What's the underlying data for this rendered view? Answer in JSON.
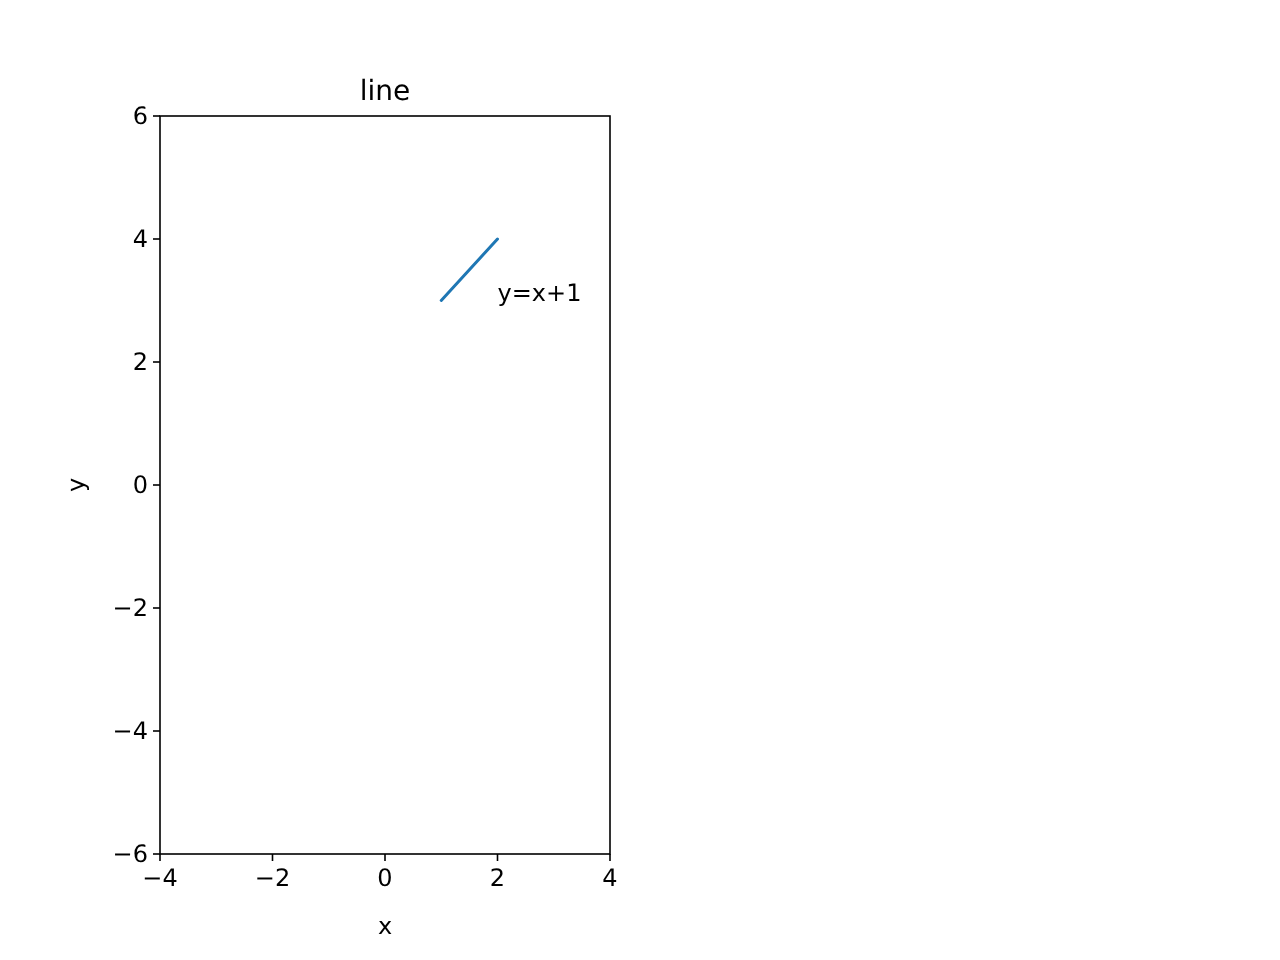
{
  "chart_data": {
    "type": "line",
    "title": "line",
    "xlabel": "x",
    "ylabel": "y",
    "x": [
      1,
      2
    ],
    "series": [
      {
        "color": "#1f77b4",
        "values": [
          3,
          4
        ]
      }
    ],
    "xlim": [
      -4,
      4
    ],
    "ylim": [
      -6,
      6
    ],
    "xticks": [
      {
        "value": -4,
        "label": "−4"
      },
      {
        "value": -2,
        "label": "−2"
      },
      0,
      2,
      4
    ],
    "yticks": [
      {
        "value": -6,
        "label": "−6"
      },
      {
        "value": -4,
        "label": "−4"
      },
      {
        "value": -2,
        "label": "−2"
      },
      0,
      2,
      4,
      6
    ],
    "annotations": [
      "y=x+1"
    ],
    "grid": false,
    "marker": "none",
    "line_style": "solid"
  }
}
